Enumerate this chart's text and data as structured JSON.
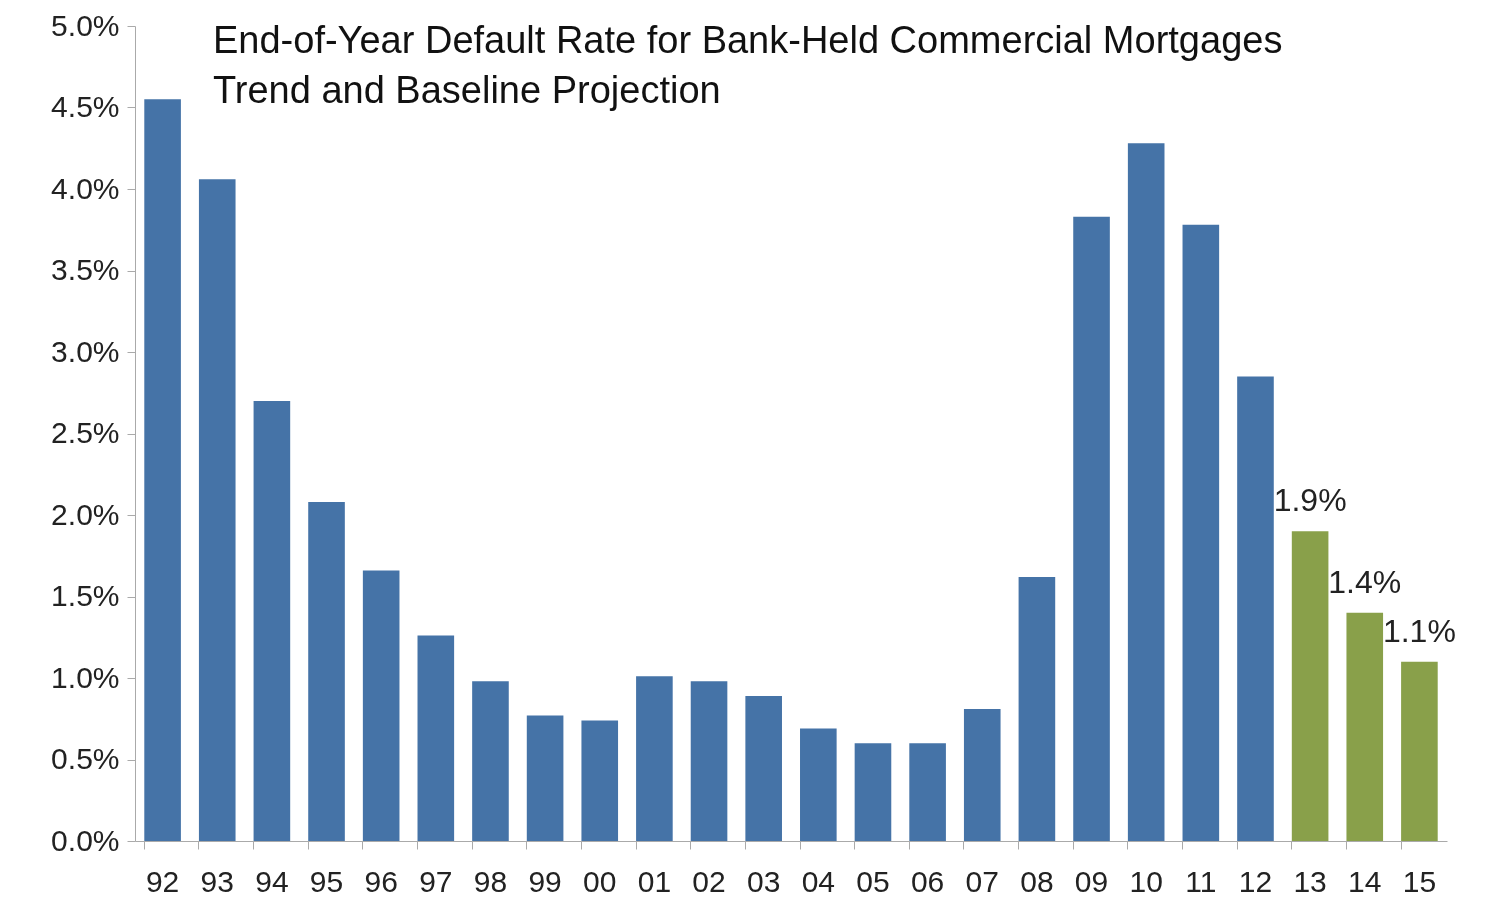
{
  "chart_data": {
    "type": "bar",
    "title": "End-of-Year Default Rate for Bank-Held Commercial Mortgages",
    "subtitle": "Trend and Baseline Projection",
    "categories": [
      "92",
      "93",
      "94",
      "95",
      "96",
      "97",
      "98",
      "99",
      "00",
      "01",
      "02",
      "03",
      "04",
      "05",
      "06",
      "07",
      "08",
      "09",
      "10",
      "11",
      "12",
      "13",
      "14",
      "15"
    ],
    "values": [
      4.55,
      4.06,
      2.7,
      2.08,
      1.66,
      1.26,
      0.98,
      0.77,
      0.74,
      1.01,
      0.98,
      0.89,
      0.69,
      0.6,
      0.6,
      0.81,
      1.62,
      3.83,
      4.28,
      3.78,
      2.85,
      1.9,
      1.4,
      1.1
    ],
    "colors": [
      "#4573a7",
      "#4573a7",
      "#4573a7",
      "#4573a7",
      "#4573a7",
      "#4573a7",
      "#4573a7",
      "#4573a7",
      "#4573a7",
      "#4573a7",
      "#4573a7",
      "#4573a7",
      "#4573a7",
      "#4573a7",
      "#4573a7",
      "#4573a7",
      "#4573a7",
      "#4573a7",
      "#4573a7",
      "#4573a7",
      "#4573a7",
      "#89a04a",
      "#89a04a",
      "#89a04a"
    ],
    "value_labels": [
      null,
      null,
      null,
      null,
      null,
      null,
      null,
      null,
      null,
      null,
      null,
      null,
      null,
      null,
      null,
      null,
      null,
      null,
      null,
      null,
      null,
      "1.9%",
      "1.4%",
      "1.1%"
    ],
    "ylim": [
      0,
      5
    ],
    "yticks": [
      {
        "value": 0,
        "label": "0.0%"
      },
      {
        "value": 0.5,
        "label": "0.5%"
      },
      {
        "value": 1,
        "label": "1.0%"
      },
      {
        "value": 1.5,
        "label": "1.5%"
      },
      {
        "value": 2,
        "label": "2.0%"
      },
      {
        "value": 2.5,
        "label": "2.5%"
      },
      {
        "value": 3,
        "label": "3.0%"
      },
      {
        "value": 3.5,
        "label": "3.5%"
      },
      {
        "value": 4,
        "label": "4.0%"
      },
      {
        "value": 4.5,
        "label": "4.5%"
      },
      {
        "value": 5,
        "label": "5.0%"
      }
    ],
    "grid": false
  }
}
